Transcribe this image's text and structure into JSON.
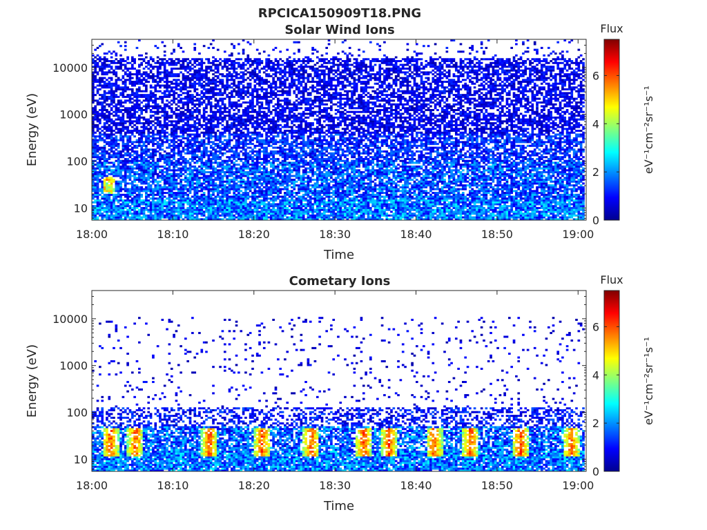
{
  "figure": {
    "title": "RPCICA150909T18.PNG"
  },
  "chart_data": [
    {
      "type": "heatmap",
      "title": "Solar Wind Ions",
      "xlabel": "Time",
      "ylabel": "Energy (eV)",
      "x_ticks": [
        "18:00",
        "18:10",
        "18:20",
        "18:30",
        "18:40",
        "18:50",
        "19:00"
      ],
      "x_range_minutes": [
        0,
        61
      ],
      "y_scale": "log",
      "y_ticks": [
        {
          "value": 10,
          "label": "10"
        },
        {
          "value": 100,
          "label": "100"
        },
        {
          "value": 1000,
          "label": "1000"
        },
        {
          "value": 10000,
          "label": "10000"
        }
      ],
      "ylim": [
        5.5,
        40000
      ],
      "colorbar": {
        "title": "Flux",
        "label": "eV⁻¹cm⁻²sr⁻¹s⁻¹",
        "range": [
          0,
          7.5
        ],
        "ticks": [
          {
            "value": 0,
            "label": "0"
          },
          {
            "value": 2,
            "label": "2"
          },
          {
            "value": 4,
            "label": "4"
          },
          {
            "value": 6,
            "label": "6"
          }
        ],
        "colormap": "jet"
      },
      "pattern": "solar-wind",
      "grid": false
    },
    {
      "type": "heatmap",
      "title": "Cometary Ions",
      "xlabel": "Time",
      "ylabel": "Energy (eV)",
      "x_ticks": [
        "18:00",
        "18:10",
        "18:20",
        "18:30",
        "18:40",
        "18:50",
        "19:00"
      ],
      "x_range_minutes": [
        0,
        61
      ],
      "y_scale": "log",
      "y_ticks": [
        {
          "value": 10,
          "label": "10"
        },
        {
          "value": 100,
          "label": "100"
        },
        {
          "value": 1000,
          "label": "1000"
        },
        {
          "value": 10000,
          "label": "10000"
        }
      ],
      "ylim": [
        5.5,
        40000
      ],
      "colorbar": {
        "title": "Flux",
        "label": "eV⁻¹cm⁻²sr⁻¹s⁻¹",
        "range": [
          0,
          7.5
        ],
        "ticks": [
          {
            "value": 0,
            "label": "0"
          },
          {
            "value": 2,
            "label": "2"
          },
          {
            "value": 4,
            "label": "4"
          },
          {
            "value": 6,
            "label": "6"
          }
        ],
        "colormap": "jet"
      },
      "pattern": "cometary",
      "hotspots_minutes": [
        2.3,
        5.4,
        14.6,
        21.1,
        27.2,
        33.7,
        36.8,
        42.4,
        46.9,
        53.1,
        59.4
      ],
      "hotspot_energy_range_eV": [
        12,
        45
      ],
      "grid": false
    }
  ]
}
